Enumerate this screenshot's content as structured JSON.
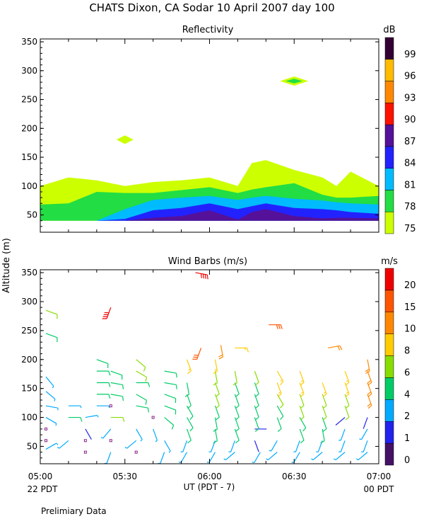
{
  "page": {
    "title": "CHATS Dixon, CA  Sodar  10 April 2007  day 100",
    "ylabel": "Altitude (m)",
    "xlabel": "UT  (PDT - 7)",
    "left_date_label": "22 PDT",
    "right_date_label": "00 PDT",
    "footer": "Prelimiary Data"
  },
  "chart_data": [
    {
      "type": "area",
      "title": "Reflectivity",
      "ylabel": "Altitude (m)",
      "x_ticks": [
        "05:00",
        "05:30",
        "06:00",
        "06:30",
        "07:00"
      ],
      "xlim": [
        "05:00",
        "07:00"
      ],
      "ylim": [
        20,
        355
      ],
      "y_ticks": [
        50,
        100,
        150,
        200,
        250,
        300,
        350
      ],
      "colorbar": {
        "unit": "dB",
        "levels": [
          75,
          78,
          81,
          84,
          87,
          90,
          93,
          96,
          99
        ],
        "colors": [
          "#ccff00",
          "#22dd44",
          "#00bbff",
          "#2222ff",
          "#551199",
          "#ff1100",
          "#ff8800",
          "#ffbb00",
          "#330033"
        ]
      },
      "x": [
        "05:00",
        "05:10",
        "05:20",
        "05:30",
        "05:40",
        "05:50",
        "06:00",
        "06:10",
        "06:15",
        "06:20",
        "06:30",
        "06:40",
        "06:45",
        "06:50",
        "07:00"
      ],
      "series": [
        {
          "level": 75,
          "values": [
            100,
            115,
            110,
            100,
            107,
            110,
            115,
            100,
            140,
            145,
            128,
            115,
            100,
            125,
            100
          ]
        },
        {
          "level": 78,
          "values": [
            68,
            70,
            90,
            88,
            88,
            93,
            98,
            88,
            94,
            98,
            105,
            85,
            80,
            80,
            83
          ]
        },
        {
          "level": 81,
          "values": [
            40,
            40,
            40,
            60,
            76,
            80,
            83,
            76,
            80,
            83,
            78,
            75,
            72,
            70,
            68
          ]
        },
        {
          "level": 84,
          "values": [
            40,
            40,
            40,
            43,
            58,
            62,
            70,
            60,
            65,
            70,
            62,
            60,
            58,
            55,
            52
          ]
        },
        {
          "level": 87,
          "values": [
            40,
            40,
            40,
            40,
            45,
            48,
            58,
            42,
            55,
            60,
            48,
            44,
            45,
            45,
            44
          ]
        }
      ],
      "patches": [
        {
          "label": "75 dB patch",
          "x": [
            "05:27",
            "05:33"
          ],
          "y": [
            173,
            188
          ]
        },
        {
          "label": "75 dB patch",
          "x": [
            "06:25",
            "06:35"
          ],
          "y": [
            274,
            290
          ]
        },
        {
          "label": "78 dB core",
          "x": [
            "06:27",
            "06:33"
          ],
          "y": [
            278,
            286
          ]
        }
      ]
    },
    {
      "type": "scatter",
      "title": "Wind Barbs (m/s)",
      "ylabel": "Altitude (m)",
      "x_ticks": [
        "05:00",
        "05:30",
        "06:00",
        "06:30",
        "07:00"
      ],
      "xlim": [
        "05:00",
        "07:00"
      ],
      "ylim": [
        20,
        355
      ],
      "y_ticks": [
        50,
        100,
        150,
        200,
        250,
        300,
        350
      ],
      "colorbar": {
        "unit": "m/s",
        "levels": [
          0,
          1,
          2,
          4,
          6,
          8,
          10,
          15,
          20
        ],
        "colors": [
          "#441166",
          "#2222ee",
          "#00aaff",
          "#00cc66",
          "#88dd00",
          "#ffcc00",
          "#ff8800",
          "#ff5500",
          "#ee0000"
        ]
      },
      "barbs": [
        {
          "x": "05:02",
          "y": 45,
          "speed": 2,
          "dir": 60
        },
        {
          "x": "05:02",
          "y": 60,
          "speed": 0,
          "dir": 0
        },
        {
          "x": "05:02",
          "y": 80,
          "speed": 0,
          "dir": 0
        },
        {
          "x": "05:02",
          "y": 100,
          "speed": 2,
          "dir": 120
        },
        {
          "x": "05:02",
          "y": 120,
          "speed": 3,
          "dir": 100
        },
        {
          "x": "05:02",
          "y": 145,
          "speed": 3,
          "dir": 130
        },
        {
          "x": "05:02",
          "y": 170,
          "speed": 3,
          "dir": 140
        },
        {
          "x": "05:02",
          "y": 245,
          "speed": 5,
          "dir": 110
        },
        {
          "x": "05:02",
          "y": 285,
          "speed": 6,
          "dir": 110
        },
        {
          "x": "05:10",
          "y": 60,
          "speed": 2,
          "dir": 230
        },
        {
          "x": "05:10",
          "y": 100,
          "speed": 5,
          "dir": 90
        },
        {
          "x": "05:10",
          "y": 120,
          "speed": 2,
          "dir": 90
        },
        {
          "x": "05:16",
          "y": 40,
          "speed": 0,
          "dir": 0
        },
        {
          "x": "05:16",
          "y": 60,
          "speed": 0,
          "dir": 0
        },
        {
          "x": "05:16",
          "y": 80,
          "speed": 1,
          "dir": 150
        },
        {
          "x": "05:16",
          "y": 100,
          "speed": 2,
          "dir": 80
        },
        {
          "x": "05:20",
          "y": 120,
          "speed": 2,
          "dir": 90
        },
        {
          "x": "05:20",
          "y": 140,
          "speed": 5,
          "dir": 90
        },
        {
          "x": "05:20",
          "y": 160,
          "speed": 5,
          "dir": 90
        },
        {
          "x": "05:20",
          "y": 180,
          "speed": 5,
          "dir": 90
        },
        {
          "x": "05:20",
          "y": 200,
          "speed": 5,
          "dir": 110
        },
        {
          "x": "05:25",
          "y": 40,
          "speed": 2,
          "dir": 200
        },
        {
          "x": "05:25",
          "y": 60,
          "speed": 0,
          "dir": 0
        },
        {
          "x": "05:25",
          "y": 80,
          "speed": 2,
          "dir": 220
        },
        {
          "x": "05:25",
          "y": 100,
          "speed": 6,
          "dir": 90
        },
        {
          "x": "05:25",
          "y": 120,
          "speed": 0,
          "dir": 0
        },
        {
          "x": "05:25",
          "y": 140,
          "speed": 5,
          "dir": 100
        },
        {
          "x": "05:25",
          "y": 160,
          "speed": 5,
          "dir": 100
        },
        {
          "x": "05:25",
          "y": 180,
          "speed": 5,
          "dir": 110
        },
        {
          "x": "05:25",
          "y": 290,
          "speed": 20,
          "dir": 200
        },
        {
          "x": "05:34",
          "y": 40,
          "speed": 0,
          "dir": 0
        },
        {
          "x": "05:34",
          "y": 60,
          "speed": 2,
          "dir": 230
        },
        {
          "x": "05:34",
          "y": 80,
          "speed": 2,
          "dir": 150
        },
        {
          "x": "05:34",
          "y": 120,
          "speed": 5,
          "dir": 100
        },
        {
          "x": "05:34",
          "y": 140,
          "speed": 5,
          "dir": 120
        },
        {
          "x": "05:34",
          "y": 160,
          "speed": 5,
          "dir": 90
        },
        {
          "x": "05:34",
          "y": 180,
          "speed": 6,
          "dir": 120
        },
        {
          "x": "05:34",
          "y": 200,
          "speed": 6,
          "dir": 130
        },
        {
          "x": "05:40",
          "y": 80,
          "speed": 2,
          "dir": 160
        },
        {
          "x": "05:40",
          "y": 100,
          "speed": 0,
          "dir": 0
        },
        {
          "x": "05:44",
          "y": 40,
          "speed": 2,
          "dir": 200
        },
        {
          "x": "05:44",
          "y": 60,
          "speed": 3,
          "dir": 150
        },
        {
          "x": "05:44",
          "y": 100,
          "speed": 5,
          "dir": 130
        },
        {
          "x": "05:44",
          "y": 120,
          "speed": 5,
          "dir": 110
        },
        {
          "x": "05:44",
          "y": 140,
          "speed": 5,
          "dir": 110
        },
        {
          "x": "05:44",
          "y": 160,
          "speed": 5,
          "dir": 100
        },
        {
          "x": "05:44",
          "y": 180,
          "speed": 5,
          "dir": 100
        },
        {
          "x": "05:52",
          "y": 40,
          "speed": 2,
          "dir": 210
        },
        {
          "x": "05:52",
          "y": 60,
          "speed": 3,
          "dir": 200
        },
        {
          "x": "05:52",
          "y": 80,
          "speed": 5,
          "dir": 160
        },
        {
          "x": "05:52",
          "y": 100,
          "speed": 5,
          "dir": 150
        },
        {
          "x": "05:52",
          "y": 120,
          "speed": 5,
          "dir": 150
        },
        {
          "x": "05:52",
          "y": 140,
          "speed": 5,
          "dir": 160
        },
        {
          "x": "05:52",
          "y": 160,
          "speed": 5,
          "dir": 170
        },
        {
          "x": "05:52",
          "y": 200,
          "speed": 8,
          "dir": 160
        },
        {
          "x": "05:57",
          "y": 220,
          "speed": 15,
          "dir": 200
        },
        {
          "x": "05:55",
          "y": 350,
          "speed": 20,
          "dir": 100
        },
        {
          "x": "06:02",
          "y": 40,
          "speed": 2,
          "dir": 210
        },
        {
          "x": "06:02",
          "y": 60,
          "speed": 3,
          "dir": 200
        },
        {
          "x": "06:02",
          "y": 80,
          "speed": 5,
          "dir": 170
        },
        {
          "x": "06:02",
          "y": 100,
          "speed": 5,
          "dir": 170
        },
        {
          "x": "06:02",
          "y": 120,
          "speed": 5,
          "dir": 160
        },
        {
          "x": "06:02",
          "y": 140,
          "speed": 6,
          "dir": 160
        },
        {
          "x": "06:02",
          "y": 160,
          "speed": 6,
          "dir": 160
        },
        {
          "x": "06:02",
          "y": 180,
          "speed": 6,
          "dir": 170
        },
        {
          "x": "06:02",
          "y": 200,
          "speed": 8,
          "dir": 170
        },
        {
          "x": "06:04",
          "y": 225,
          "speed": 10,
          "dir": 170
        },
        {
          "x": "06:09",
          "y": 40,
          "speed": 2,
          "dir": 230
        },
        {
          "x": "06:09",
          "y": 60,
          "speed": 3,
          "dir": 200
        },
        {
          "x": "06:09",
          "y": 80,
          "speed": 5,
          "dir": 160
        },
        {
          "x": "06:09",
          "y": 100,
          "speed": 5,
          "dir": 160
        },
        {
          "x": "06:09",
          "y": 120,
          "speed": 5,
          "dir": 160
        },
        {
          "x": "06:09",
          "y": 140,
          "speed": 5,
          "dir": 160
        },
        {
          "x": "06:09",
          "y": 160,
          "speed": 5,
          "dir": 160
        },
        {
          "x": "06:09",
          "y": 180,
          "speed": 6,
          "dir": 170
        },
        {
          "x": "06:09",
          "y": 220,
          "speed": 8,
          "dir": 90
        },
        {
          "x": "06:16",
          "y": 60,
          "speed": 1,
          "dir": 160
        },
        {
          "x": "06:16",
          "y": 80,
          "speed": 1,
          "dir": 90
        },
        {
          "x": "06:16",
          "y": 100,
          "speed": 5,
          "dir": 160
        },
        {
          "x": "06:16",
          "y": 120,
          "speed": 5,
          "dir": 160
        },
        {
          "x": "06:16",
          "y": 140,
          "speed": 5,
          "dir": 160
        },
        {
          "x": "06:16",
          "y": 160,
          "speed": 5,
          "dir": 160
        },
        {
          "x": "06:16",
          "y": 180,
          "speed": 6,
          "dir": 160
        },
        {
          "x": "06:18",
          "y": 40,
          "speed": 2,
          "dir": 210
        },
        {
          "x": "06:21",
          "y": 260,
          "speed": 15,
          "dir": 90
        },
        {
          "x": "06:24",
          "y": 40,
          "speed": 2,
          "dir": 230
        },
        {
          "x": "06:24",
          "y": 60,
          "speed": 2,
          "dir": 210
        },
        {
          "x": "06:24",
          "y": 100,
          "speed": 5,
          "dir": 160
        },
        {
          "x": "06:24",
          "y": 120,
          "speed": 5,
          "dir": 150
        },
        {
          "x": "06:24",
          "y": 140,
          "speed": 6,
          "dir": 150
        },
        {
          "x": "06:24",
          "y": 160,
          "speed": 8,
          "dir": 160
        },
        {
          "x": "06:24",
          "y": 180,
          "speed": 8,
          "dir": 150
        },
        {
          "x": "06:32",
          "y": 40,
          "speed": 2,
          "dir": 210
        },
        {
          "x": "06:32",
          "y": 60,
          "speed": 3,
          "dir": 200
        },
        {
          "x": "06:32",
          "y": 80,
          "speed": 5,
          "dir": 160
        },
        {
          "x": "06:32",
          "y": 100,
          "speed": 5,
          "dir": 150
        },
        {
          "x": "06:32",
          "y": 120,
          "speed": 6,
          "dir": 160
        },
        {
          "x": "06:32",
          "y": 140,
          "speed": 6,
          "dir": 160
        },
        {
          "x": "06:32",
          "y": 160,
          "speed": 8,
          "dir": 160
        },
        {
          "x": "06:32",
          "y": 180,
          "speed": 8,
          "dir": 160
        },
        {
          "x": "06:40",
          "y": 40,
          "speed": 2,
          "dir": 230
        },
        {
          "x": "06:40",
          "y": 60,
          "speed": 3,
          "dir": 200
        },
        {
          "x": "06:40",
          "y": 80,
          "speed": 5,
          "dir": 170
        },
        {
          "x": "06:40",
          "y": 100,
          "speed": 5,
          "dir": 160
        },
        {
          "x": "06:40",
          "y": 120,
          "speed": 6,
          "dir": 160
        },
        {
          "x": "06:40",
          "y": 140,
          "speed": 6,
          "dir": 160
        },
        {
          "x": "06:40",
          "y": 160,
          "speed": 8,
          "dir": 160
        },
        {
          "x": "06:42",
          "y": 220,
          "speed": 10,
          "dir": 80
        },
        {
          "x": "06:48",
          "y": 40,
          "speed": 2,
          "dir": 230
        },
        {
          "x": "06:48",
          "y": 60,
          "speed": 3,
          "dir": 200
        },
        {
          "x": "06:48",
          "y": 80,
          "speed": 2,
          "dir": 200
        },
        {
          "x": "06:48",
          "y": 100,
          "speed": 1,
          "dir": 230
        },
        {
          "x": "06:48",
          "y": 120,
          "speed": 6,
          "dir": 160
        },
        {
          "x": "06:48",
          "y": 140,
          "speed": 6,
          "dir": 160
        },
        {
          "x": "06:48",
          "y": 160,
          "speed": 8,
          "dir": 160
        },
        {
          "x": "06:48",
          "y": 180,
          "speed": 8,
          "dir": 160
        },
        {
          "x": "06:56",
          "y": 40,
          "speed": 2,
          "dir": 230
        },
        {
          "x": "06:56",
          "y": 60,
          "speed": 3,
          "dir": 200
        },
        {
          "x": "06:56",
          "y": 80,
          "speed": 2,
          "dir": 210
        },
        {
          "x": "06:56",
          "y": 100,
          "speed": 1,
          "dir": 200
        },
        {
          "x": "06:56",
          "y": 140,
          "speed": 10,
          "dir": 160
        },
        {
          "x": "06:56",
          "y": 160,
          "speed": 10,
          "dir": 160
        },
        {
          "x": "06:56",
          "y": 180,
          "speed": 10,
          "dir": 160
        },
        {
          "x": "06:56",
          "y": 200,
          "speed": 10,
          "dir": 170
        }
      ]
    }
  ]
}
